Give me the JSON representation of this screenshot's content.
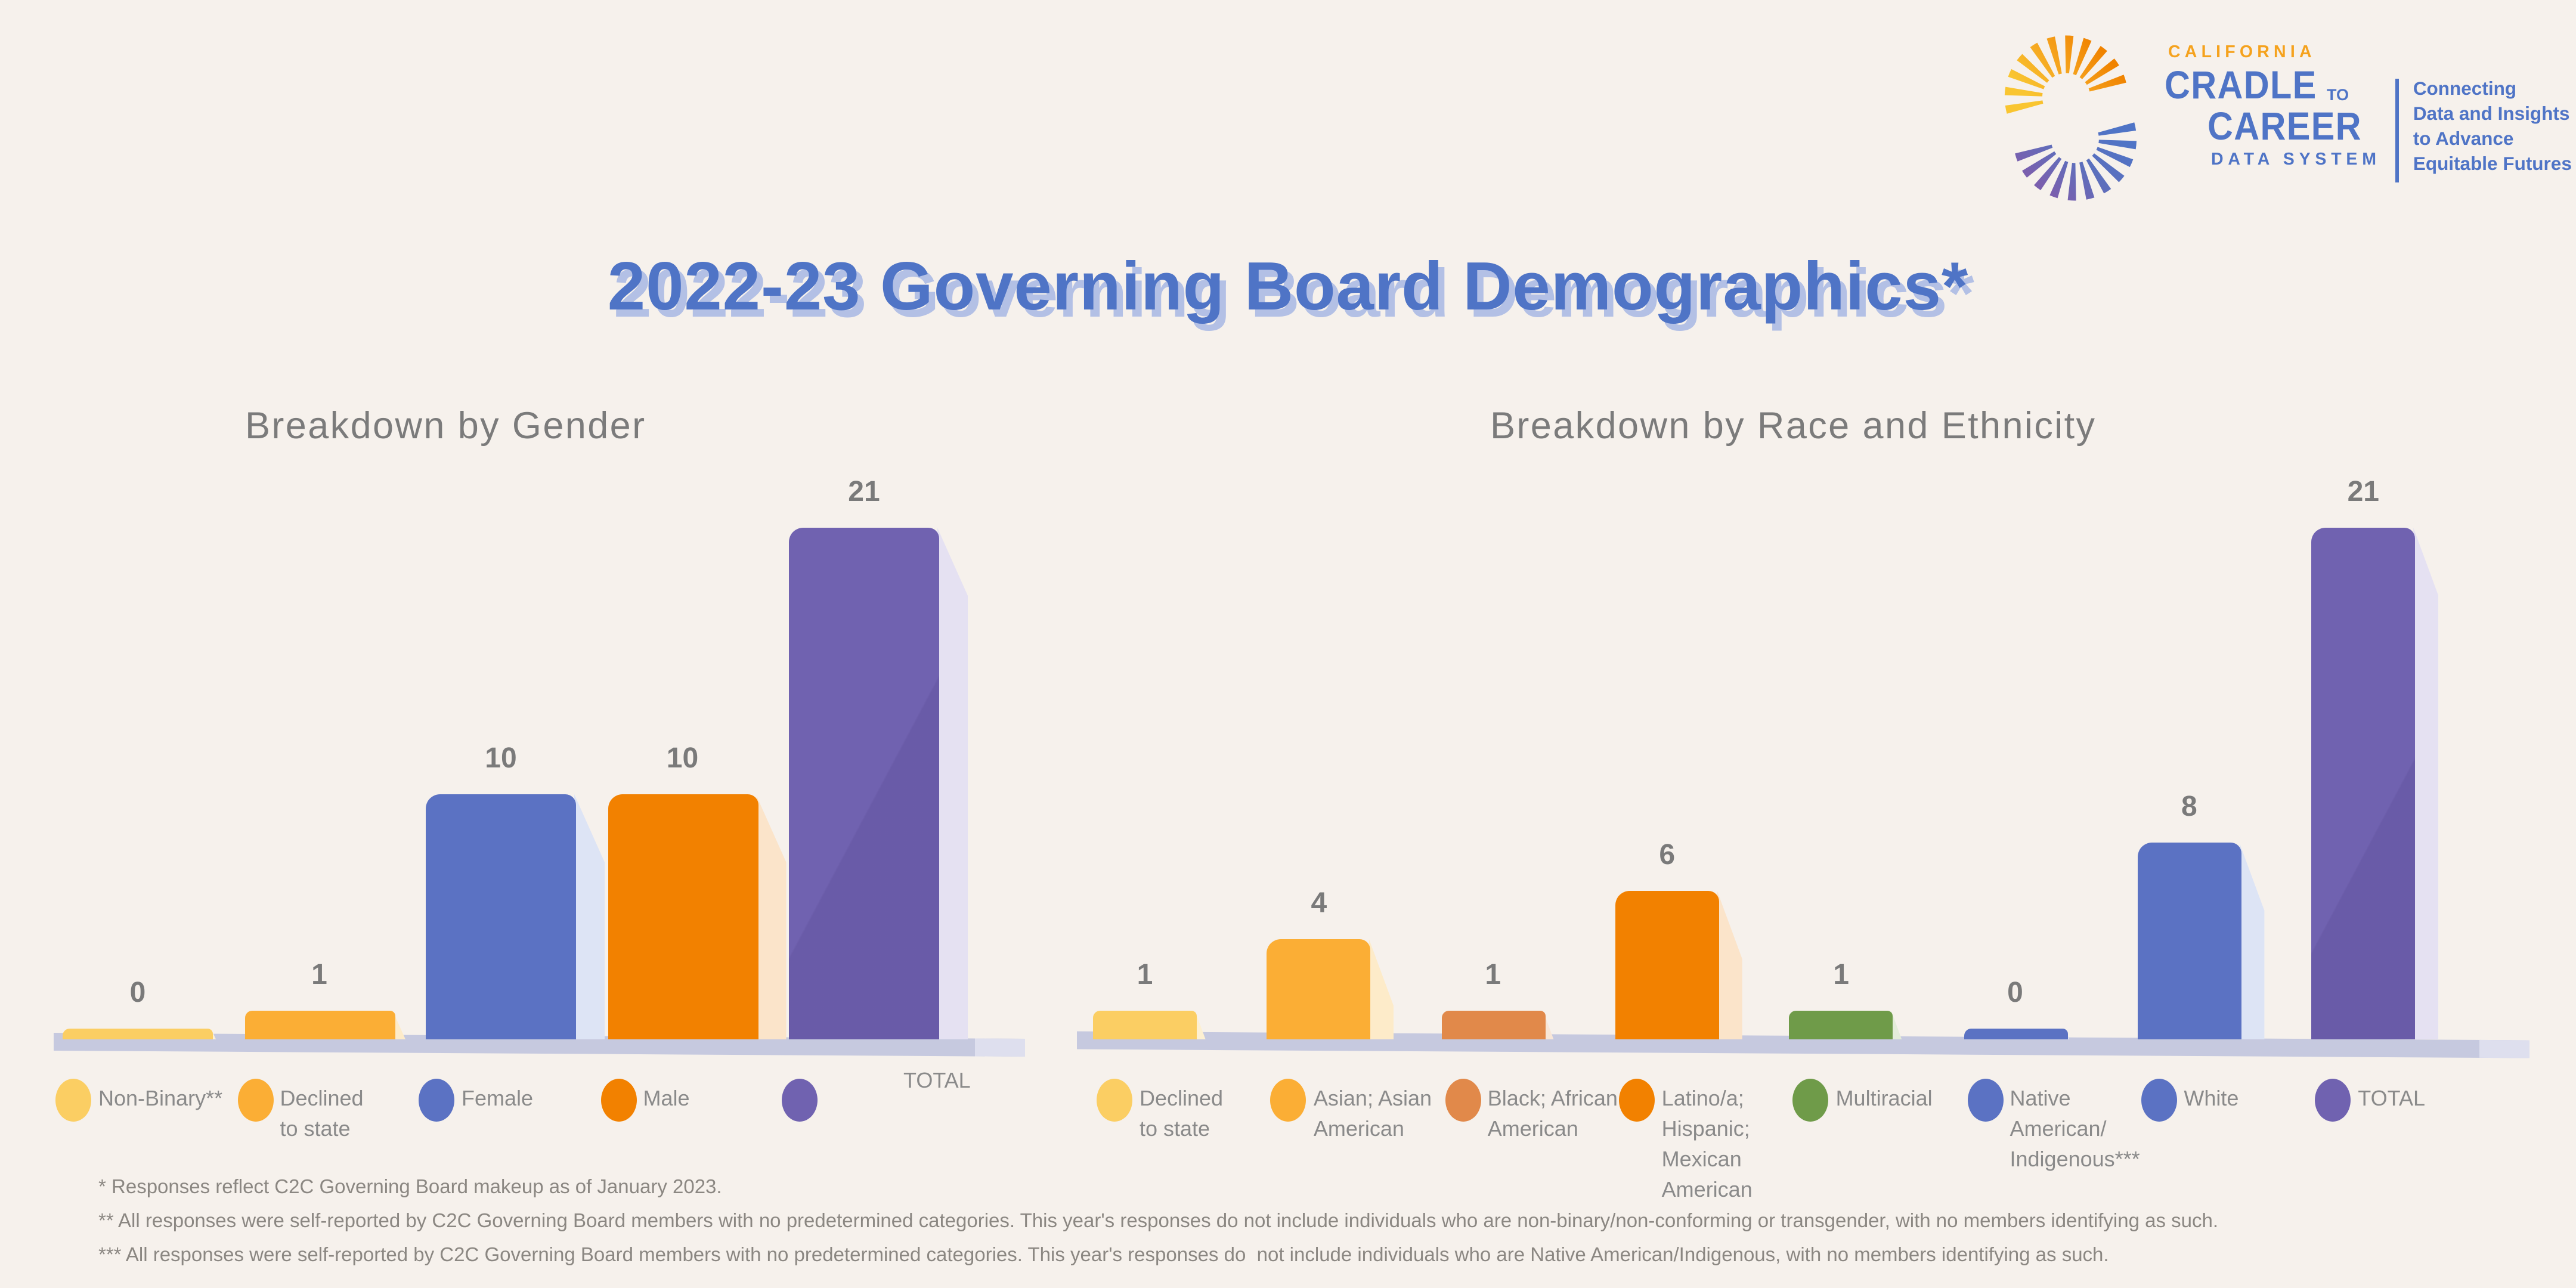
{
  "header": {
    "title": "2022-23 Governing Board Demographics*",
    "logo": {
      "brand_small_top": "CALIFORNIA",
      "brand_big_1": "CRADLE",
      "brand_big_1_suffix": "TO",
      "brand_big_2": "CAREER",
      "brand_small_bottom": "DATA SYSTEM",
      "tagline_lines": [
        "Connecting",
        "Data and Insights",
        "to Advance",
        "Equitable Futures"
      ]
    }
  },
  "chart_data": [
    {
      "type": "bar",
      "title": "Breakdown by Gender",
      "categories": [
        "Non-Binary**",
        "Declined to state",
        "Female",
        "Male",
        "TOTAL"
      ],
      "values": [
        0,
        1,
        10,
        10,
        21
      ],
      "bar_colors": [
        "#FBCE63",
        "#FBAE35",
        "#5B72C3",
        "#F28100",
        "#7062B0"
      ],
      "echo_colors": [
        "#FDF0D2",
        "#FDEBC9",
        "#DDE4F5",
        "#FBE4CA",
        "#E5E1F2"
      ],
      "ylim": [
        0,
        21
      ],
      "grid": false,
      "value_labels": true,
      "legend_position": "bottom"
    },
    {
      "type": "bar",
      "title": "Breakdown by Race and Ethnicity",
      "categories": [
        "Declined to state",
        "Asian; Asian American",
        "Black; African American",
        "Latino/a; Hispanic; Mexican American",
        "Multiracial",
        "Native American/ Indigenous***",
        "White",
        "TOTAL"
      ],
      "values": [
        1,
        4,
        1,
        6,
        1,
        0,
        8,
        21
      ],
      "bar_colors": [
        "#FBCE63",
        "#FBAE35",
        "#E1894A",
        "#F28100",
        "#6F9B49",
        "#5B72C3",
        "#5B72C3",
        "#7062B0"
      ],
      "echo_colors": [
        "#FDF0D2",
        "#FDEBC9",
        "#F8E7D8",
        "#FBE4CA",
        "#E4ECDA",
        "#DDE4F5",
        "#DDE4F5",
        "#E5E1F2"
      ],
      "ylim": [
        0,
        21
      ],
      "grid": false,
      "value_labels": true,
      "legend_position": "bottom"
    }
  ],
  "footnotes": [
    "* Responses reflect C2C Governing Board makeup as of January 2023.",
    "** All responses were self-reported by C2C Governing Board members with no predetermined categories. This year's responses do not include individuals who are non-binary/non-conforming or transgender, with no members identifying as such.",
    "*** All responses were self-reported by C2C Governing Board members with no predetermined categories. This year's responses do  not include individuals who are Native American/Indigenous, with no members identifying as such."
  ],
  "colors": {
    "background": "#F6F1EC",
    "title_blue": "#4F74C6",
    "title_shadow": "#B3C0E5",
    "heading_gray": "#7B7B7B",
    "value_gray": "#7A7A7A",
    "legend_gray": "#8A8A8A",
    "footnote_gray": "#8B8782",
    "floor": "#C6C9DF",
    "floor_light": "#DEDFEE",
    "logo_orange": "#F5A21D",
    "logo_blue": "#4F74C6",
    "logo_purple": "#7A5FAE"
  }
}
